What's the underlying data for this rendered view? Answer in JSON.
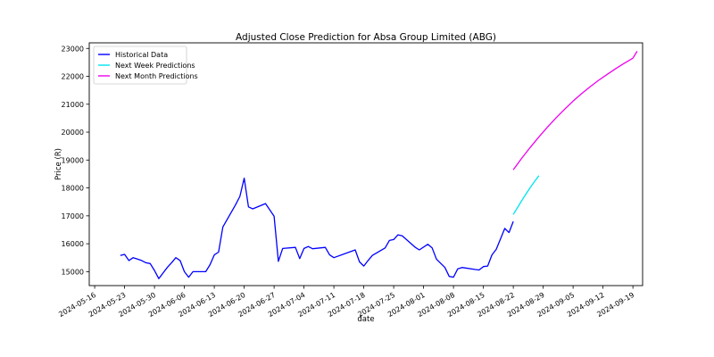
{
  "chart_data": {
    "type": "line",
    "title": "Adjusted Close Prediction for Absa Group Limited (ABG)",
    "xlabel": "date",
    "ylabel": "Price (R)",
    "x_range": [
      "2024-05-16",
      "2024-09-20"
    ],
    "ylim": [
      14500,
      23200
    ],
    "y_ticks": [
      15000,
      16000,
      17000,
      18000,
      19000,
      20000,
      21000,
      22000,
      23000
    ],
    "y_tick_labels": [
      "15000",
      "16000",
      "17000",
      "18000",
      "19000",
      "20000",
      "21000",
      "22000",
      "23000"
    ],
    "x_ticks": [
      "2024-05-16",
      "2024-05-23",
      "2024-05-30",
      "2024-06-06",
      "2024-06-13",
      "2024-06-20",
      "2024-06-27",
      "2024-07-04",
      "2024-07-11",
      "2024-07-18",
      "2024-07-25",
      "2024-08-01",
      "2024-08-08",
      "2024-08-15",
      "2024-08-22",
      "2024-08-29",
      "2024-09-05",
      "2024-09-12",
      "2024-09-19"
    ],
    "grid": false,
    "legend_position": "top-left",
    "series": [
      {
        "name": "Historical Data",
        "color": "#0000ff",
        "points": [
          [
            "2024-05-22",
            15580
          ],
          [
            "2024-05-23",
            15620
          ],
          [
            "2024-05-24",
            15400
          ],
          [
            "2024-05-25",
            15500
          ],
          [
            "2024-05-26",
            15450
          ],
          [
            "2024-05-27",
            15400
          ],
          [
            "2024-05-28",
            15320
          ],
          [
            "2024-05-29",
            15290
          ],
          [
            "2024-05-30",
            15040
          ],
          [
            "2024-05-31",
            14750
          ],
          [
            "2024-06-01",
            14950
          ],
          [
            "2024-06-02",
            15150
          ],
          [
            "2024-06-03",
            15320
          ],
          [
            "2024-06-04",
            15500
          ],
          [
            "2024-06-05",
            15400
          ],
          [
            "2024-06-06",
            15000
          ],
          [
            "2024-06-07",
            14800
          ],
          [
            "2024-06-08",
            15000
          ],
          [
            "2024-06-11",
            15000
          ],
          [
            "2024-06-12",
            15250
          ],
          [
            "2024-06-13",
            15600
          ],
          [
            "2024-06-14",
            15700
          ],
          [
            "2024-06-15",
            16600
          ],
          [
            "2024-06-18",
            17400
          ],
          [
            "2024-06-19",
            17700
          ],
          [
            "2024-06-20",
            18350
          ],
          [
            "2024-06-21",
            17320
          ],
          [
            "2024-06-22",
            17250
          ],
          [
            "2024-06-25",
            17440
          ],
          [
            "2024-06-27",
            16990
          ],
          [
            "2024-06-28",
            15370
          ],
          [
            "2024-06-29",
            15830
          ],
          [
            "2024-07-02",
            15870
          ],
          [
            "2024-07-03",
            15470
          ],
          [
            "2024-07-04",
            15830
          ],
          [
            "2024-07-05",
            15900
          ],
          [
            "2024-07-06",
            15820
          ],
          [
            "2024-07-09",
            15870
          ],
          [
            "2024-07-10",
            15600
          ],
          [
            "2024-07-11",
            15500
          ],
          [
            "2024-07-16",
            15780
          ],
          [
            "2024-07-17",
            15350
          ],
          [
            "2024-07-18",
            15200
          ],
          [
            "2024-07-19",
            15400
          ],
          [
            "2024-07-20",
            15580
          ],
          [
            "2024-07-23",
            15850
          ],
          [
            "2024-07-24",
            16120
          ],
          [
            "2024-07-25",
            16150
          ],
          [
            "2024-07-26",
            16320
          ],
          [
            "2024-07-27",
            16280
          ],
          [
            "2024-07-30",
            15880
          ],
          [
            "2024-07-31",
            15780
          ],
          [
            "2024-08-02",
            15980
          ],
          [
            "2024-08-03",
            15850
          ],
          [
            "2024-08-04",
            15450
          ],
          [
            "2024-08-06",
            15150
          ],
          [
            "2024-08-07",
            14830
          ],
          [
            "2024-08-08",
            14800
          ],
          [
            "2024-08-09",
            15100
          ],
          [
            "2024-08-10",
            15150
          ],
          [
            "2024-08-13",
            15080
          ],
          [
            "2024-08-14",
            15060
          ],
          [
            "2024-08-15",
            15180
          ],
          [
            "2024-08-16",
            15200
          ],
          [
            "2024-08-17",
            15600
          ],
          [
            "2024-08-18",
            15800
          ],
          [
            "2024-08-20",
            16550
          ],
          [
            "2024-08-21",
            16400
          ],
          [
            "2024-08-22",
            16800
          ]
        ]
      },
      {
        "name": "Next Week Predictions",
        "color": "#00e5ee",
        "points": [
          [
            "2024-08-22",
            17050
          ],
          [
            "2024-08-23",
            17300
          ],
          [
            "2024-08-24",
            17550
          ],
          [
            "2024-08-25",
            17790
          ],
          [
            "2024-08-26",
            18020
          ],
          [
            "2024-08-27",
            18240
          ],
          [
            "2024-08-28",
            18440
          ]
        ]
      },
      {
        "name": "Next Month Predictions",
        "color": "#ee00ee",
        "points": [
          [
            "2024-08-22",
            18650
          ],
          [
            "2024-08-24",
            19070
          ],
          [
            "2024-08-26",
            19460
          ],
          [
            "2024-08-28",
            19830
          ],
          [
            "2024-08-30",
            20180
          ],
          [
            "2024-09-01",
            20510
          ],
          [
            "2024-09-03",
            20820
          ],
          [
            "2024-09-05",
            21110
          ],
          [
            "2024-09-07",
            21380
          ],
          [
            "2024-09-09",
            21630
          ],
          [
            "2024-09-11",
            21860
          ],
          [
            "2024-09-13",
            22070
          ],
          [
            "2024-09-15",
            22280
          ],
          [
            "2024-09-17",
            22470
          ],
          [
            "2024-09-19",
            22650
          ],
          [
            "2024-09-20",
            22900
          ]
        ]
      }
    ]
  }
}
